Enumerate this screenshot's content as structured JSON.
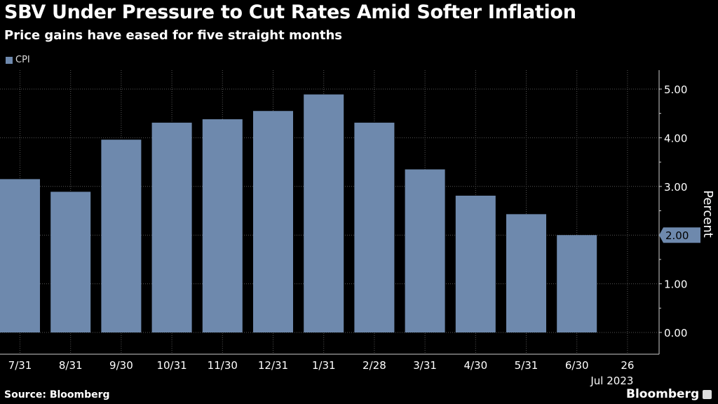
{
  "title": "SBV Under Pressure to Cut Rates Amid Softer Inflation",
  "subtitle": "Price gains have eased for five straight months",
  "source": "Source: Bloomberg",
  "brand": "Bloomberg",
  "chart_data": {
    "type": "bar",
    "legend": [
      "CPI"
    ],
    "categories": [
      "7/31",
      "8/31",
      "9/30",
      "10/31",
      "11/30",
      "12/31",
      "1/31",
      "2/28",
      "3/31",
      "4/30",
      "5/31",
      "6/30",
      "26"
    ],
    "x_sublabel": "Jul 2023",
    "values": [
      3.15,
      2.89,
      3.96,
      4.31,
      4.38,
      4.55,
      4.89,
      4.31,
      3.35,
      2.81,
      2.43,
      2.0,
      null
    ],
    "ylabel": "Percent",
    "ylim": [
      -0.45,
      5.35
    ],
    "yticks": [
      "0.00",
      "1.00",
      "2.00",
      "3.00",
      "4.00",
      "5.00"
    ],
    "last_value_label": "2.00",
    "bar_color": "#6e89ad",
    "grid": true,
    "legend_position": "top-left"
  }
}
